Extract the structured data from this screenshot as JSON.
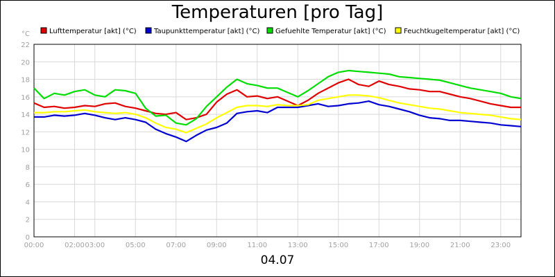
{
  "chart_data": {
    "type": "line",
    "title": "Temperaturen [pro Tag]",
    "unit_label": "°C",
    "date_label": "04.07",
    "ylim": [
      0,
      22
    ],
    "y_ticks": [
      0,
      2,
      4,
      6,
      8,
      10,
      12,
      14,
      16,
      18,
      20,
      22
    ],
    "x_range_hours": [
      0,
      24
    ],
    "x_ticks": [
      {
        "label": "00:00",
        "hour": 0
      },
      {
        "label": "02:00",
        "hour": 2
      },
      {
        "label": "03:00",
        "hour": 3
      },
      {
        "label": "05:00",
        "hour": 5
      },
      {
        "label": "07:00",
        "hour": 7
      },
      {
        "label": "09:00",
        "hour": 9
      },
      {
        "label": "11:00",
        "hour": 11
      },
      {
        "label": "13:00",
        "hour": 13
      },
      {
        "label": "15:00",
        "hour": 15
      },
      {
        "label": "17:00",
        "hour": 17
      },
      {
        "label": "19:00",
        "hour": 19
      },
      {
        "label": "21:00",
        "hour": 21
      },
      {
        "label": "23:00",
        "hour": 23
      }
    ],
    "grid": true,
    "legend_position": "top",
    "x_hours": [
      0,
      0.5,
      1,
      1.5,
      2,
      2.5,
      3,
      3.5,
      4,
      4.5,
      5,
      5.5,
      6,
      6.5,
      7,
      7.5,
      8,
      8.5,
      9,
      9.5,
      10,
      10.5,
      11,
      11.5,
      12,
      12.5,
      13,
      13.5,
      14,
      14.5,
      15,
      15.5,
      16,
      16.5,
      17,
      17.5,
      18,
      18.5,
      19,
      19.5,
      20,
      20.5,
      21,
      21.5,
      22,
      22.5,
      23,
      23.5,
      24
    ],
    "series": [
      {
        "name": "Lufttemperatur [akt] (°C)",
        "color": "#e00000",
        "values": [
          15.3,
          14.8,
          14.9,
          14.7,
          14.8,
          15.0,
          14.9,
          15.2,
          15.3,
          14.9,
          14.7,
          14.4,
          14.1,
          14.0,
          14.2,
          13.4,
          13.6,
          14.0,
          15.4,
          16.3,
          16.8,
          16.0,
          16.1,
          15.8,
          16.0,
          15.5,
          15.0,
          15.6,
          16.4,
          17.0,
          17.6,
          18.0,
          17.4,
          17.2,
          17.8,
          17.4,
          17.2,
          16.9,
          16.8,
          16.6,
          16.6,
          16.3,
          16.0,
          15.8,
          15.5,
          15.2,
          15.0,
          14.8,
          14.8
        ]
      },
      {
        "name": "Taupunkttemperatur [akt] (°C)",
        "color": "#0000d0",
        "values": [
          13.7,
          13.7,
          13.9,
          13.8,
          13.9,
          14.1,
          13.9,
          13.6,
          13.4,
          13.6,
          13.4,
          13.1,
          12.3,
          11.8,
          11.4,
          10.9,
          11.6,
          12.2,
          12.5,
          13.0,
          14.1,
          14.3,
          14.4,
          14.2,
          14.8,
          14.8,
          14.8,
          15.0,
          15.2,
          14.9,
          15.0,
          15.2,
          15.3,
          15.5,
          15.1,
          14.9,
          14.6,
          14.3,
          13.9,
          13.6,
          13.5,
          13.3,
          13.3,
          13.2,
          13.1,
          13.0,
          12.8,
          12.7,
          12.6
        ]
      },
      {
        "name": "Gefuehlte Temperatur [akt] (°C)",
        "color": "#00dd00",
        "values": [
          17.0,
          15.8,
          16.4,
          16.2,
          16.6,
          16.8,
          16.2,
          16.0,
          16.8,
          16.7,
          16.4,
          14.7,
          13.8,
          13.9,
          13.0,
          12.8,
          13.5,
          14.9,
          16.0,
          17.1,
          18.0,
          17.5,
          17.3,
          17.0,
          17.0,
          16.5,
          16.0,
          16.7,
          17.5,
          18.3,
          18.8,
          19.0,
          18.9,
          18.8,
          18.7,
          18.6,
          18.3,
          18.2,
          18.1,
          18.0,
          17.9,
          17.6,
          17.3,
          17.0,
          16.8,
          16.6,
          16.4,
          16.0,
          15.8
        ]
      },
      {
        "name": "Feuchtkugeltemperatur [akt] (°C)",
        "color": "#ffff00",
        "values": [
          14.2,
          14.2,
          14.3,
          14.3,
          14.4,
          14.5,
          14.3,
          14.2,
          14.1,
          14.2,
          14.0,
          13.6,
          13.0,
          12.5,
          12.3,
          11.9,
          12.4,
          12.9,
          13.6,
          14.2,
          14.8,
          15.0,
          15.0,
          14.9,
          15.1,
          15.0,
          15.0,
          15.1,
          15.6,
          15.8,
          16.0,
          16.2,
          16.2,
          16.1,
          15.9,
          15.6,
          15.3,
          15.1,
          14.9,
          14.7,
          14.6,
          14.4,
          14.2,
          14.1,
          14.0,
          13.9,
          13.7,
          13.5,
          13.4
        ]
      }
    ]
  }
}
